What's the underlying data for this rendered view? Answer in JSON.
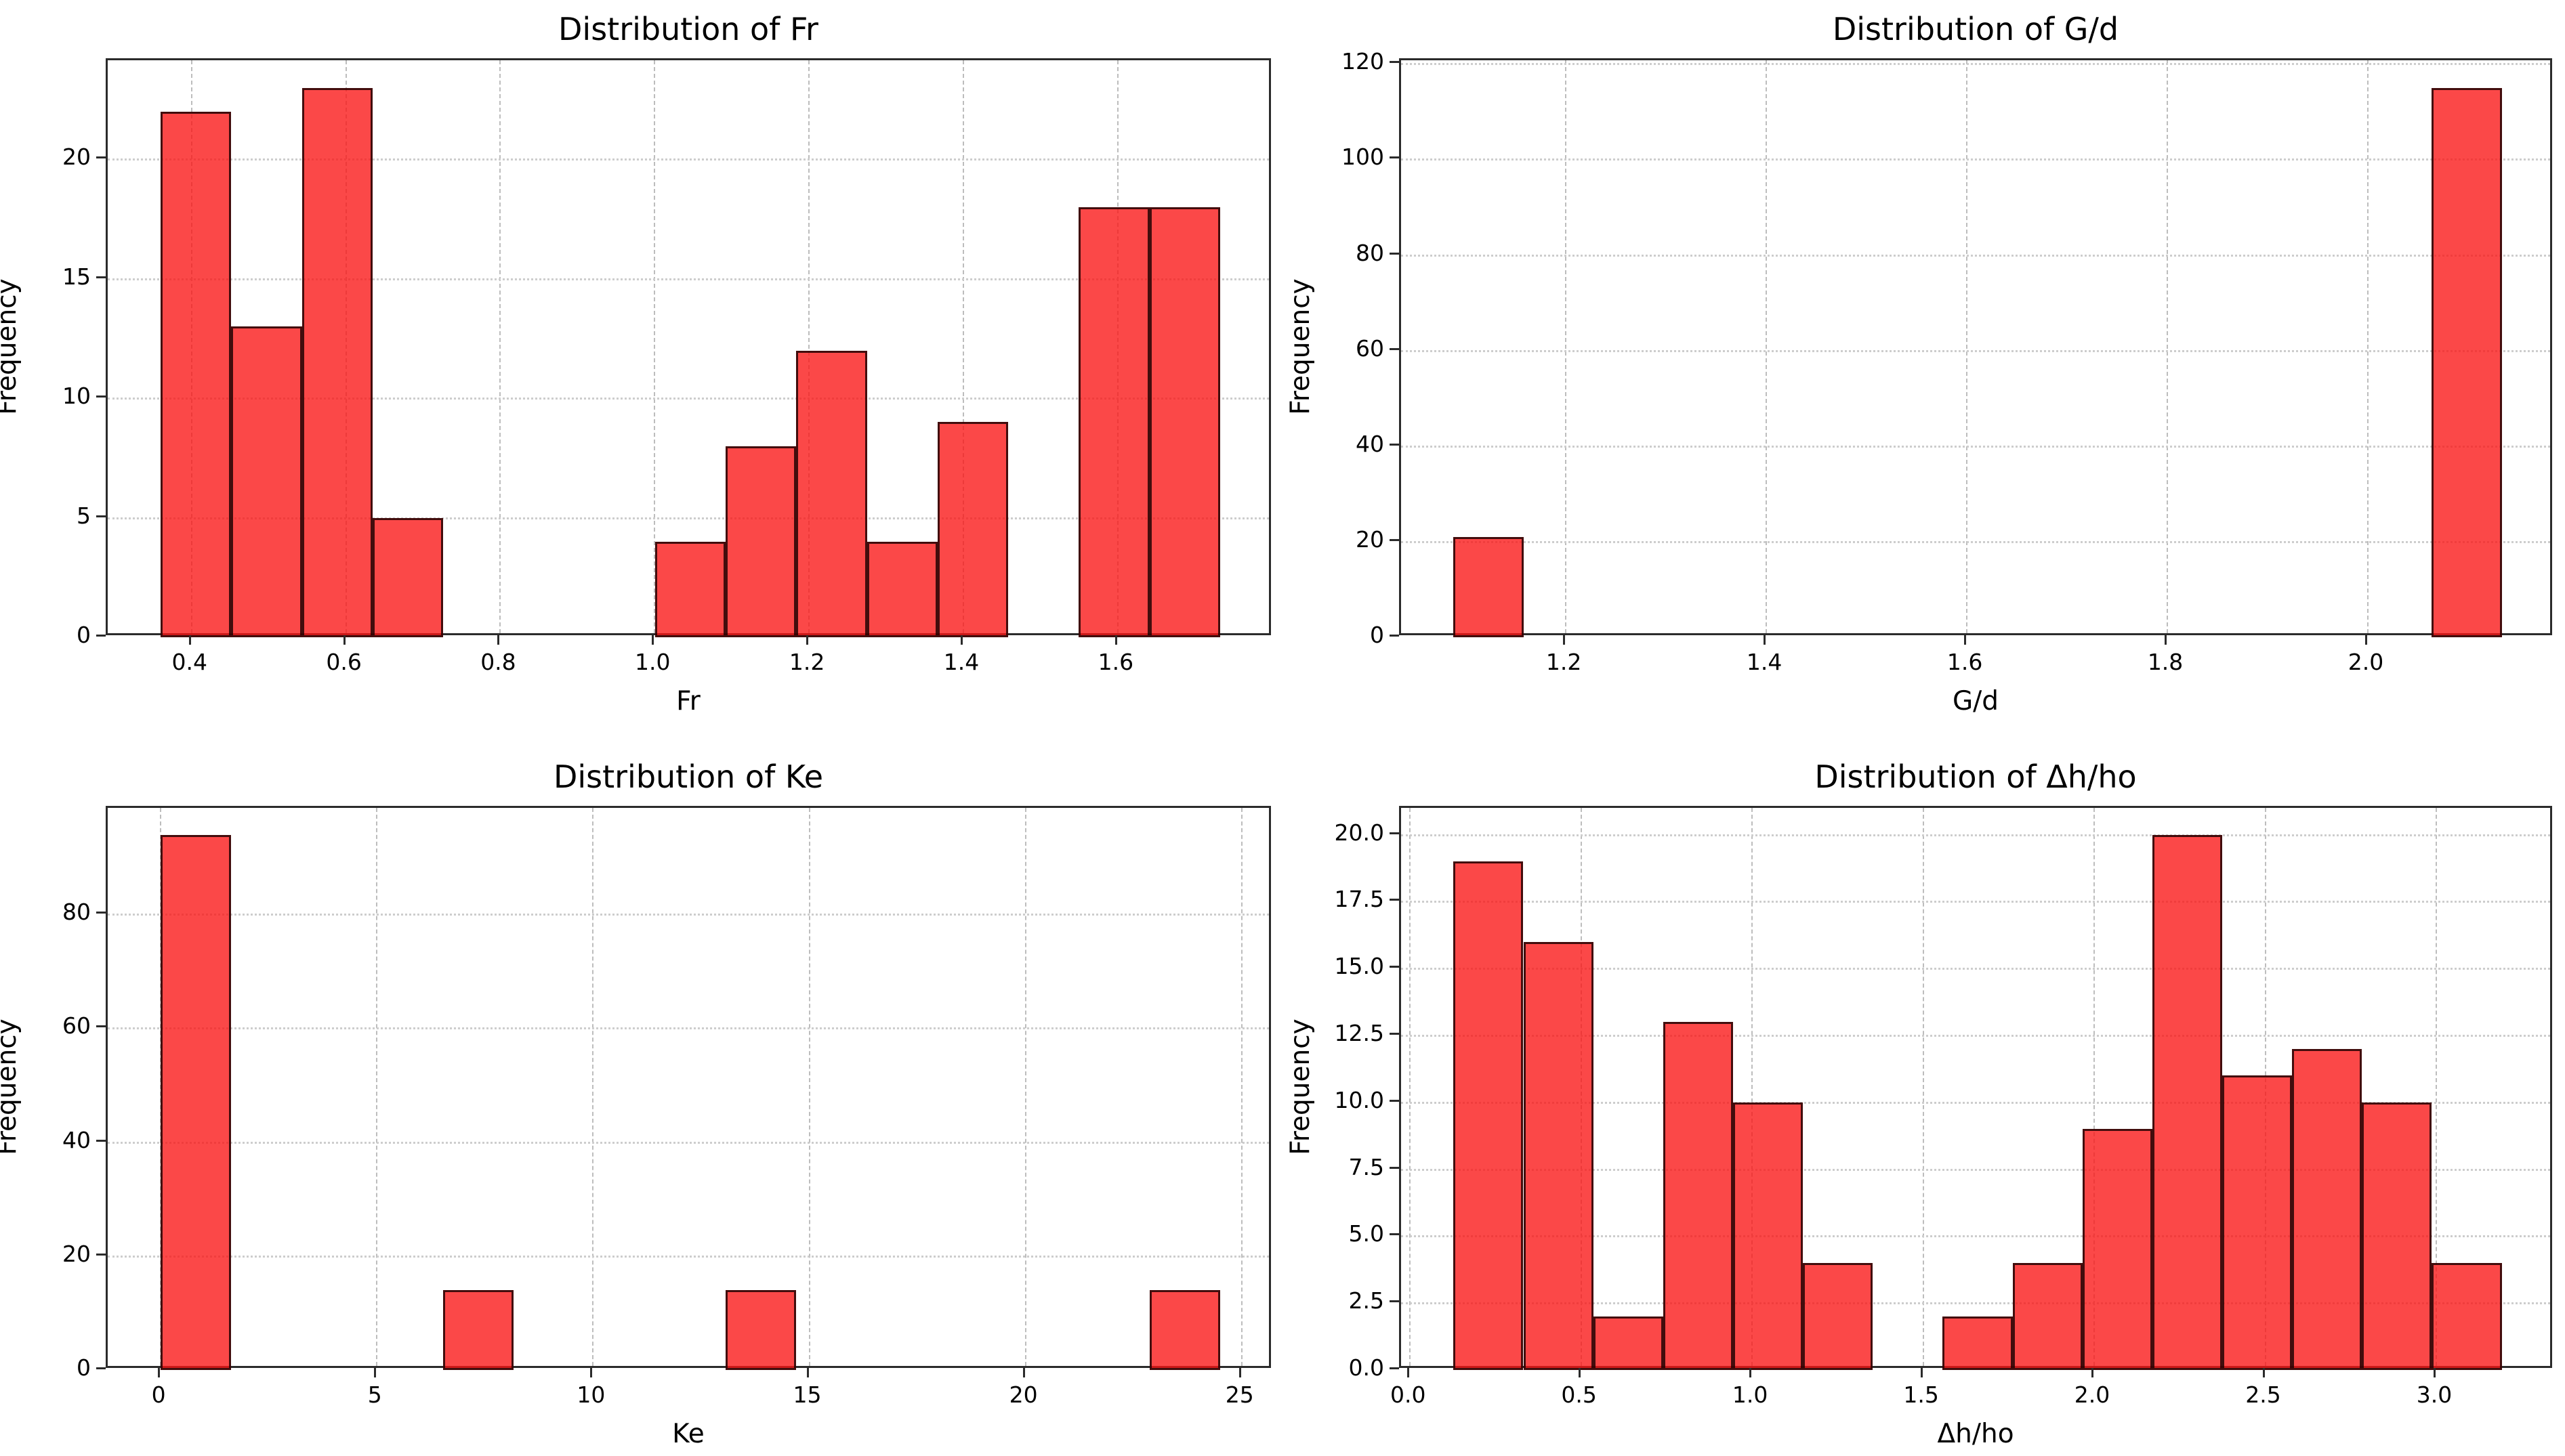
{
  "figure": {
    "background": "#ffffff",
    "n_rows": 2,
    "n_cols": 2
  },
  "colors": {
    "bar_fill_base": "#fa1414",
    "bar_fill_rendered": "#fb4848",
    "bar_alpha": 0.78,
    "bar_edge": "#190000",
    "grid_vertical": "#bdbdbd",
    "grid_horizontal": "#cdcdcd",
    "spine": "#2b2b2b",
    "text": "#000000"
  },
  "chart_data": [
    {
      "id": "fr",
      "type": "bar",
      "subtype": "histogram",
      "title": "Distribution of Fr",
      "xlabel": "Fr",
      "ylabel": "Frequency",
      "bin_start": 0.36,
      "bin_width": 0.0915,
      "counts": [
        22,
        13,
        23,
        5,
        0,
        0,
        0,
        4,
        8,
        12,
        4,
        9,
        0,
        18,
        18
      ],
      "total_count": 136,
      "xlim": [
        0.2914,
        1.8011
      ],
      "ylim": [
        0,
        24.15
      ],
      "xticks": [
        0.4,
        0.6,
        0.8,
        1.0,
        1.2,
        1.4,
        1.6
      ],
      "xtick_labels": [
        "0.4",
        "0.6",
        "0.8",
        "1.0",
        "1.2",
        "1.4",
        "1.6"
      ],
      "yticks": [
        0,
        5,
        10,
        15,
        20
      ],
      "ytick_labels": [
        "0",
        "5",
        "10",
        "15",
        "20"
      ],
      "grid": true,
      "legend": null
    },
    {
      "id": "gd",
      "type": "bar",
      "subtype": "histogram",
      "title": "Distribution of G/d",
      "xlabel": "G/d",
      "ylabel": "Frequency",
      "bin_start": 1.088,
      "bin_width": 0.0697,
      "counts": [
        21,
        0,
        0,
        0,
        0,
        0,
        0,
        0,
        0,
        0,
        0,
        0,
        0,
        0,
        115
      ],
      "total_count": 136,
      "xlim": [
        1.0357,
        2.1858
      ],
      "ylim": [
        0,
        120.75
      ],
      "xticks": [
        1.2,
        1.4,
        1.6,
        1.8,
        2.0
      ],
      "xtick_labels": [
        "1.2",
        "1.4",
        "1.6",
        "1.8",
        "2.0"
      ],
      "yticks": [
        0,
        20,
        40,
        60,
        80,
        100,
        120
      ],
      "ytick_labels": [
        "0",
        "20",
        "40",
        "60",
        "80",
        "100",
        "120"
      ],
      "grid": true,
      "legend": null
    },
    {
      "id": "ke",
      "type": "bar",
      "subtype": "histogram",
      "title": "Distribution of Ke",
      "xlabel": "Ke",
      "ylabel": "Frequency",
      "bin_start": 0.0,
      "bin_width": 1.6333,
      "counts": [
        94,
        0,
        0,
        0,
        14,
        0,
        0,
        0,
        14,
        0,
        0,
        0,
        0,
        0,
        14
      ],
      "total_count": 136,
      "xlim": [
        -1.225,
        25.7245
      ],
      "ylim": [
        0,
        98.7
      ],
      "xticks": [
        0,
        5,
        10,
        15,
        20,
        25
      ],
      "xtick_labels": [
        "0",
        "5",
        "10",
        "15",
        "20",
        "25"
      ],
      "yticks": [
        0,
        20,
        40,
        60,
        80
      ],
      "ytick_labels": [
        "0",
        "20",
        "40",
        "60",
        "80"
      ],
      "grid": true,
      "legend": null
    },
    {
      "id": "dh_ho",
      "type": "bar",
      "subtype": "histogram",
      "title": "Distribution of Δh/ho",
      "xlabel": "Δh/ho",
      "ylabel": "Frequency",
      "bin_start": 0.127,
      "bin_width": 0.2043,
      "counts": [
        19,
        16,
        2,
        13,
        10,
        4,
        0,
        2,
        4,
        9,
        20,
        11,
        12,
        10,
        4
      ],
      "total_count": 136,
      "xlim": [
        -0.0262,
        3.3447
      ],
      "ylim": [
        0,
        21.0
      ],
      "xticks": [
        0.0,
        0.5,
        1.0,
        1.5,
        2.0,
        2.5,
        3.0
      ],
      "xtick_labels": [
        "0.0",
        "0.5",
        "1.0",
        "1.5",
        "2.0",
        "2.5",
        "3.0"
      ],
      "yticks": [
        0.0,
        2.5,
        5.0,
        7.5,
        10.0,
        12.5,
        15.0,
        17.5,
        20.0
      ],
      "ytick_labels": [
        "0.0",
        "2.5",
        "5.0",
        "7.5",
        "10.0",
        "12.5",
        "15.0",
        "17.5",
        "20.0"
      ],
      "grid": true,
      "legend": null
    }
  ]
}
